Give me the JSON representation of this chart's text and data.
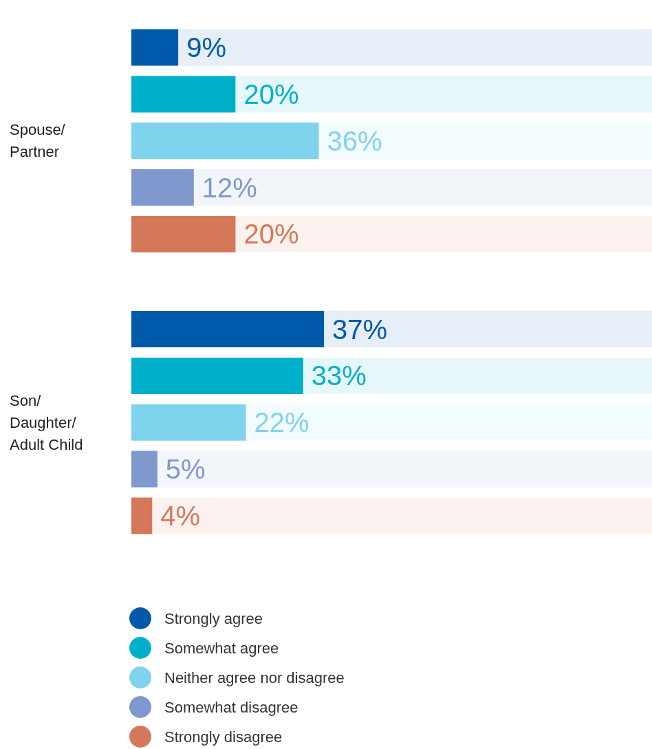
{
  "chart_data": {
    "type": "bar",
    "orientation": "horizontal",
    "categories": [
      "Spouse/\nPartner",
      "Son/\nDaughter/\nAdult Child"
    ],
    "xlim": [
      0,
      100
    ],
    "tick_labels": "y",
    "legend": "bottom left",
    "series": [
      {
        "name": "Strongly agree",
        "color": "#0059aa",
        "values": [
          9,
          37
        ],
        "value_labels": [
          "9%",
          "37%"
        ]
      },
      {
        "name": "Somewhat agree",
        "color": "#00b0cb",
        "values": [
          20,
          33
        ],
        "value_labels": [
          "20%",
          "33%"
        ]
      },
      {
        "name": "Neither agree nor disagree",
        "color": "#80d3ec",
        "values": [
          36,
          22
        ],
        "value_labels": [
          "36%",
          "22%"
        ]
      },
      {
        "name": "Somewhat disagree",
        "color": "#7f98cd",
        "values": [
          12,
          5
        ],
        "value_labels": [
          "12%",
          "5%"
        ]
      },
      {
        "name": "Strongly disagree",
        "color": "#d5785a",
        "values": [
          20,
          4
        ],
        "value_labels": [
          "20%",
          "4%"
        ]
      }
    ]
  }
}
